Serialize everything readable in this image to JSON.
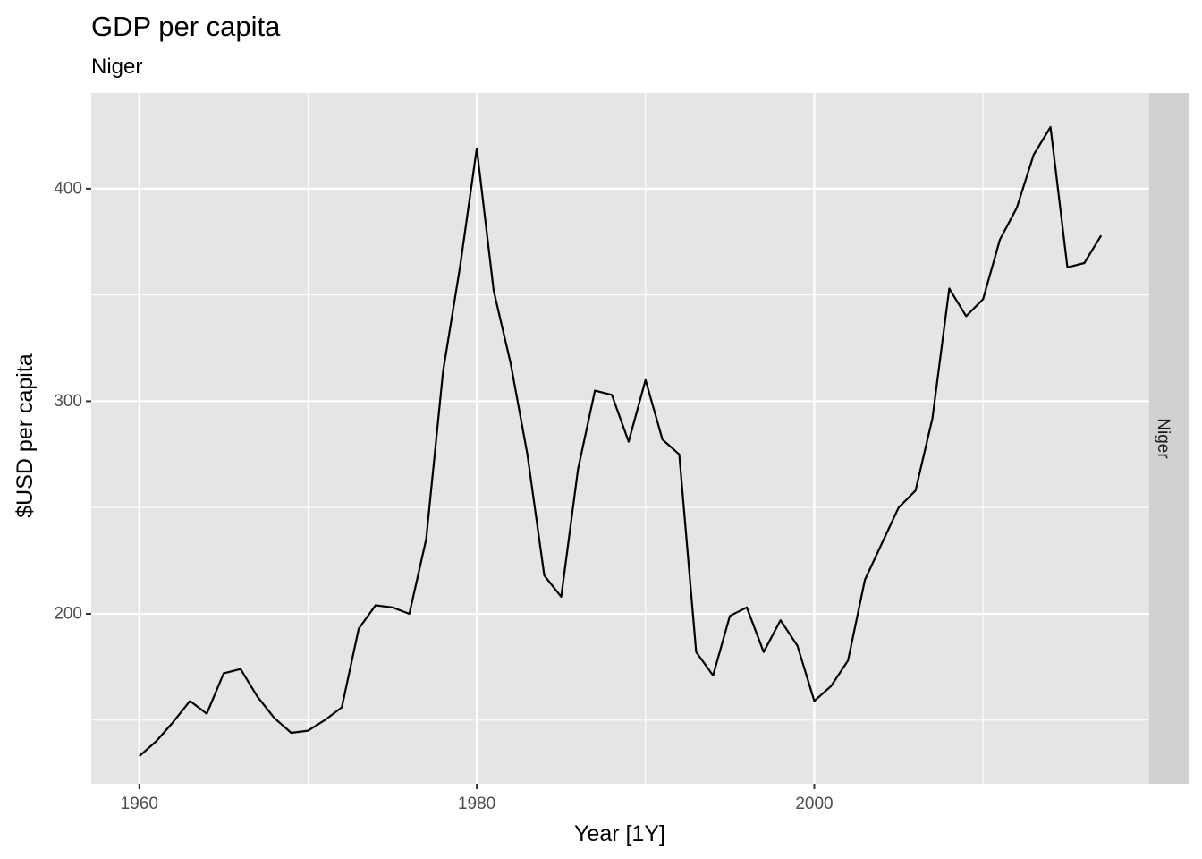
{
  "chart_data": {
    "type": "line",
    "title": "GDP per capita",
    "subtitle": "Niger",
    "xlabel": "Year [1Y]",
    "ylabel": "$USD per capita",
    "facet_label": "Niger",
    "xlim": [
      1957.15,
      2019.85
    ],
    "ylim": [
      120,
      445
    ],
    "x_ticks": [
      1960,
      1980,
      2000
    ],
    "x_minor_ticks": [
      1970,
      1990,
      2010
    ],
    "y_ticks": [
      200,
      300,
      400
    ],
    "y_minor_ticks": [
      150,
      250,
      350
    ],
    "grid": true,
    "line_color": "#000000",
    "panel_color": "#e5e5e5",
    "strip_color": "#d1d1d1",
    "series": [
      {
        "x": [
          1960,
          1961,
          1962,
          1963,
          1964,
          1965,
          1966,
          1967,
          1968,
          1969,
          1970,
          1971,
          1972,
          1973,
          1974,
          1975,
          1976,
          1977,
          1978,
          1979,
          1980,
          1981,
          1982,
          1983,
          1984,
          1985,
          1986,
          1987,
          1988,
          1989,
          1990,
          1991,
          1992,
          1993,
          1994,
          1995,
          1996,
          1997,
          1998,
          1999,
          2000,
          2001,
          2002,
          2003,
          2004,
          2005,
          2006,
          2007,
          2008,
          2009,
          2010,
          2011,
          2012,
          2013,
          2014,
          2015,
          2016,
          2017
        ],
        "values": [
          133,
          140,
          149,
          159,
          153,
          172,
          174,
          161,
          151,
          144,
          145,
          150,
          156,
          193,
          204,
          203,
          200,
          235,
          314,
          363,
          419,
          352,
          318,
          275,
          218,
          208,
          268,
          305,
          303,
          281,
          310,
          282,
          275,
          182,
          171,
          199,
          203,
          182,
          197,
          185,
          159,
          166,
          178,
          216,
          233,
          250,
          258,
          292,
          353,
          340,
          348,
          376,
          391,
          416,
          429,
          363,
          365,
          378
        ]
      }
    ]
  }
}
